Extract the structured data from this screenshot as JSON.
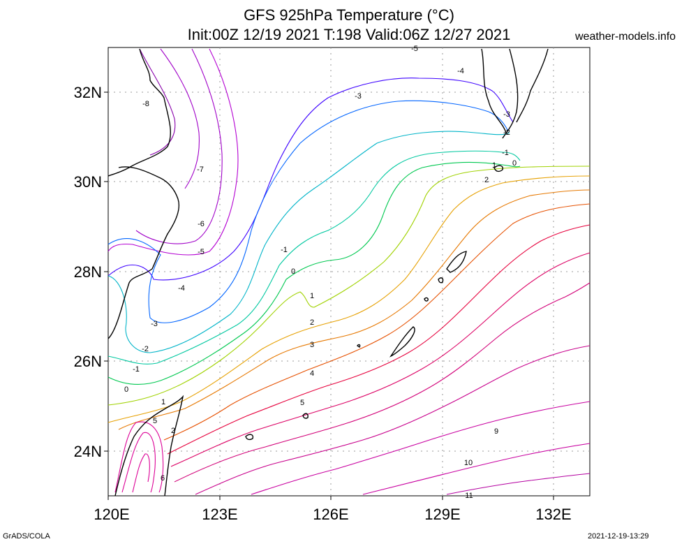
{
  "title": {
    "line1": "GFS 925hPa Temperature (°C)",
    "line2": "Init:00Z 12/19 2021 T:198 Valid:06Z 12/27 2021"
  },
  "site": "weather-models.info",
  "footer": {
    "left": "GrADS/COLA",
    "right": "2021-12-19-13:29"
  },
  "axes": {
    "lat_labels": [
      "32N",
      "30N",
      "28N",
      "26N",
      "24N"
    ],
    "lon_labels": [
      "120E",
      "123E",
      "126E",
      "129E",
      "132E"
    ]
  },
  "colors": {
    "cold_deep": "#8800aa",
    "cold": "#a000c8",
    "cool": "#0040ff",
    "cyan": "#00b4c8",
    "green": "#00c850",
    "yellowgreen": "#a0d200",
    "orange": "#e6a000",
    "orange_red": "#e65000",
    "red": "#e60050",
    "magenta": "#c80078"
  },
  "contours": [
    {
      "level": "-8"
    },
    {
      "level": "-7"
    },
    {
      "level": "-6"
    },
    {
      "level": "-5"
    },
    {
      "level": "-4"
    },
    {
      "level": "-3"
    },
    {
      "level": "-2"
    },
    {
      "level": "-1"
    },
    {
      "level": "0"
    },
    {
      "level": "1"
    },
    {
      "level": "2"
    },
    {
      "level": "3"
    },
    {
      "level": "4"
    },
    {
      "level": "5"
    },
    {
      "level": "6"
    },
    {
      "level": "9"
    },
    {
      "level": "10"
    },
    {
      "level": "11"
    }
  ]
}
